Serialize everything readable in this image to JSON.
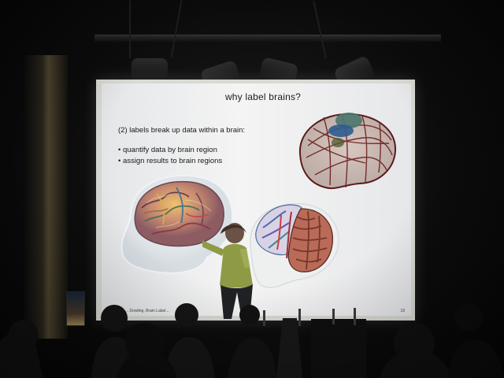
{
  "slide": {
    "title": "why label brains?",
    "subtitle": "(2) labels break up data within a brain:",
    "bullets": [
      "quantify data by brain region",
      "assign results to brain regions"
    ],
    "footer_left": "... Dowling, Brain Label...",
    "footer_right": "19"
  },
  "colors": {
    "screen": "#f0f1f3",
    "spotlight_lens": "#2f73c6",
    "presenter_jacket": "#8f9a45"
  }
}
